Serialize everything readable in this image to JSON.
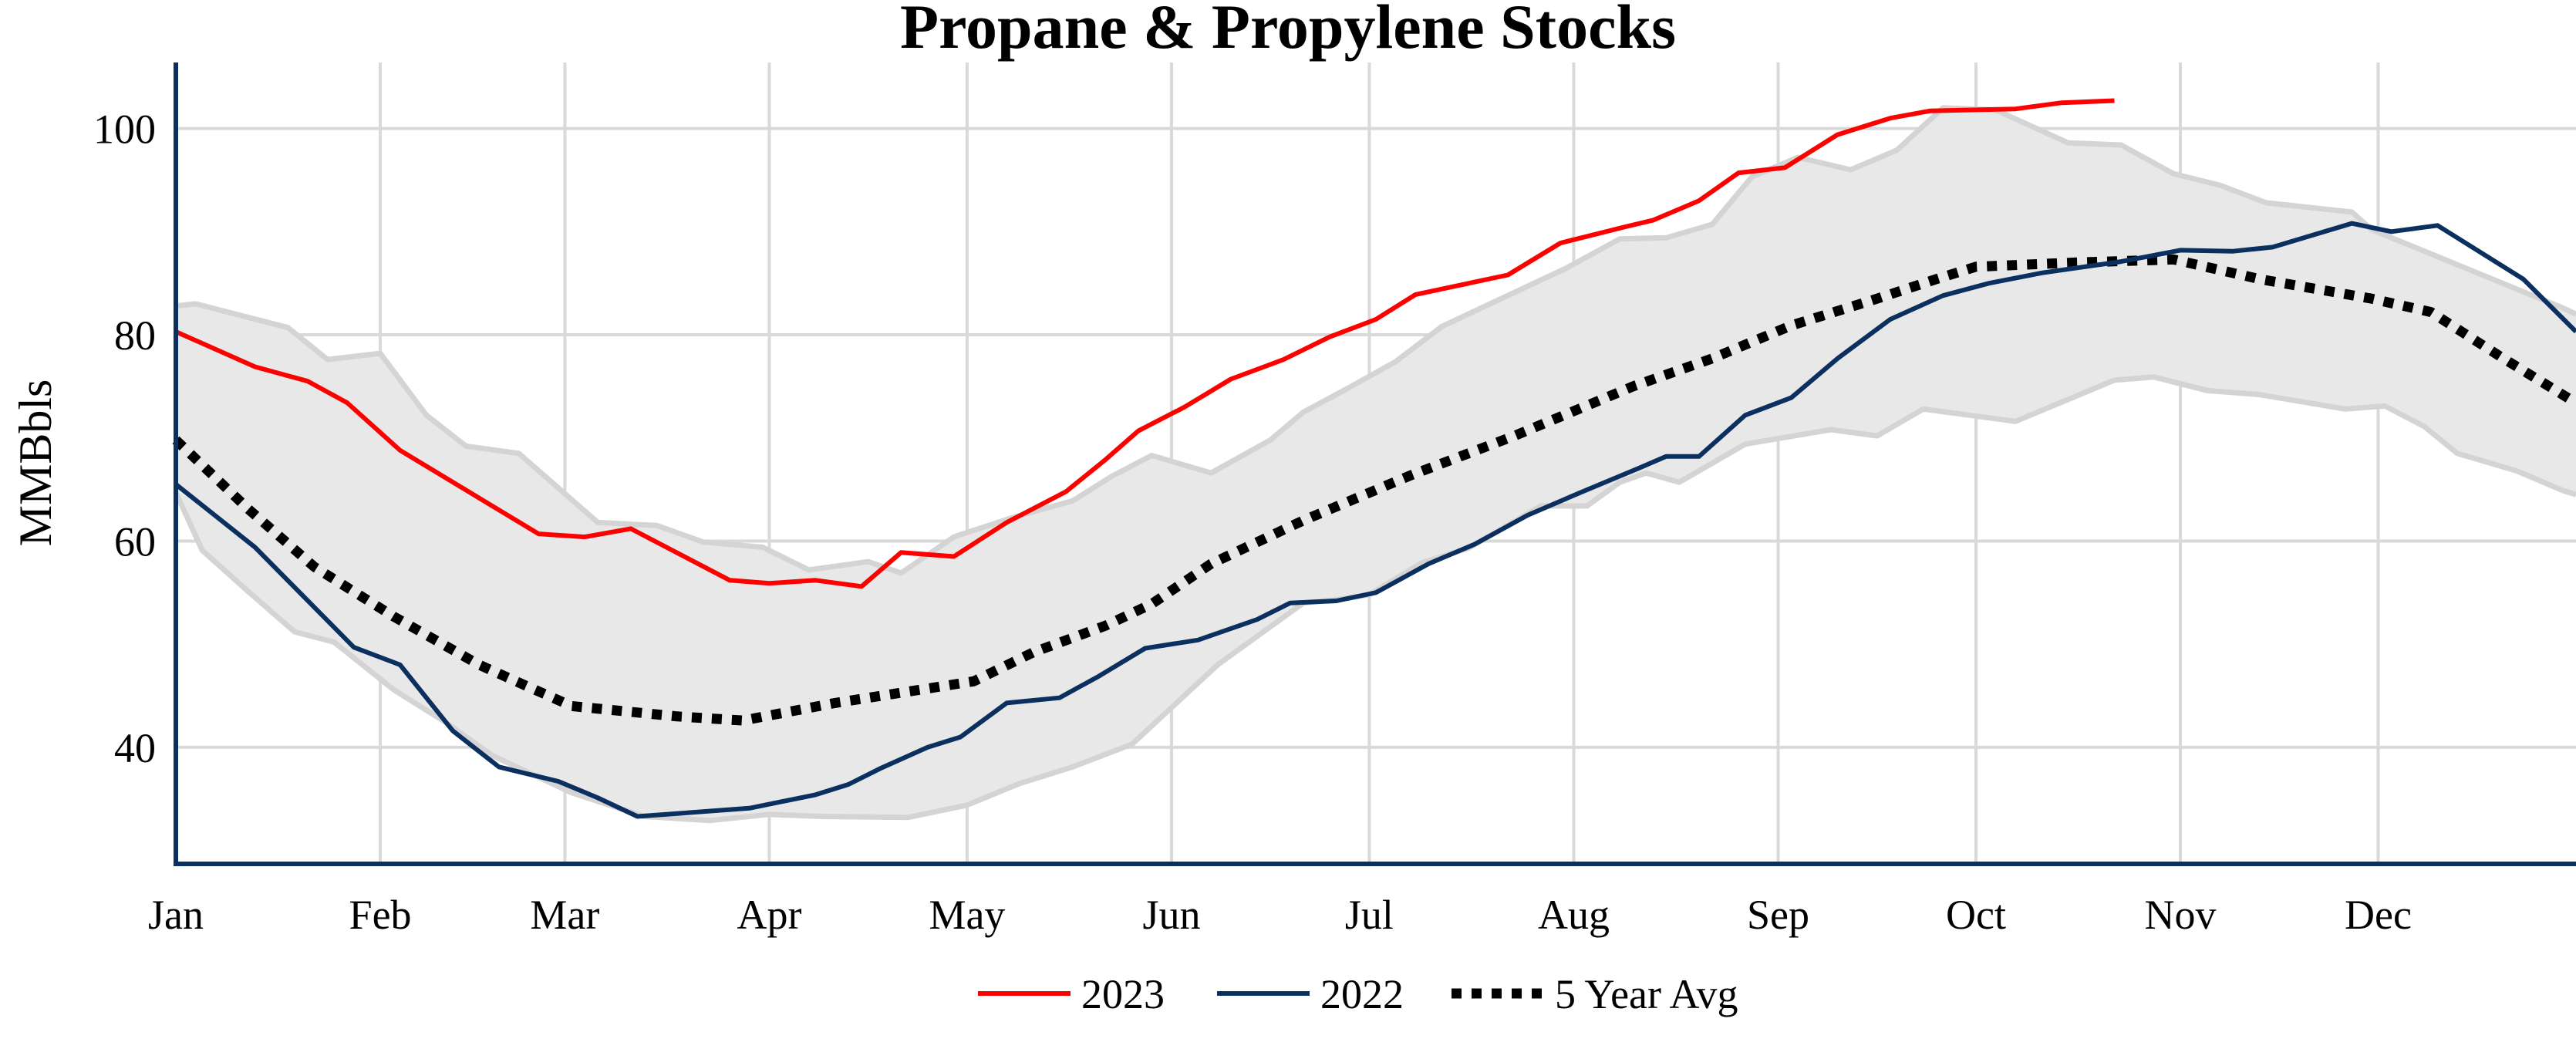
{
  "chart_data": {
    "type": "line",
    "title": "Propane & Propylene Stocks",
    "ylabel": "MMBbls",
    "xlabel": "",
    "x_axis": "date (month-day)",
    "xlim": [
      "01-01",
      "12-31"
    ],
    "ylim": [
      28.7,
      106.4
    ],
    "y_ticks": [
      40,
      60,
      80,
      100
    ],
    "x_ticks": [
      {
        "label": "Jan",
        "date": "01-01"
      },
      {
        "label": "Feb",
        "date": "02-01"
      },
      {
        "label": "Mar",
        "date": "03-01"
      },
      {
        "label": "Apr",
        "date": "04-01"
      },
      {
        "label": "May",
        "date": "05-01"
      },
      {
        "label": "Jun",
        "date": "06-01"
      },
      {
        "label": "Jul",
        "date": "07-01"
      },
      {
        "label": "Aug",
        "date": "08-01"
      },
      {
        "label": "Sep",
        "date": "09-01"
      },
      {
        "label": "Oct",
        "date": "10-01"
      },
      {
        "label": "Nov",
        "date": "11-01"
      },
      {
        "label": "Dec",
        "date": "12-01"
      }
    ],
    "grid": true,
    "legend_position": "bottom",
    "colors": {
      "2023": "#ff0000",
      "2022": "#0b2f5e",
      "avg": "#000000",
      "band_fill": "#e8e8e8",
      "band_edge": "#d4d4d4",
      "grid": "#d9d9d9",
      "axis": "#0b2f5e"
    },
    "band": {
      "upper": [
        [
          "01-01",
          82.8
        ],
        [
          "01-04",
          83.0
        ],
        [
          "01-18",
          80.7
        ],
        [
          "01-24",
          77.6
        ],
        [
          "02-01",
          78.2
        ],
        [
          "02-08",
          72.2
        ],
        [
          "02-14",
          69.2
        ],
        [
          "02-22",
          68.5
        ],
        [
          "03-06",
          61.8
        ],
        [
          "03-15",
          61.5
        ],
        [
          "03-22",
          59.9
        ],
        [
          "03-31",
          59.4
        ],
        [
          "04-07",
          57.2
        ],
        [
          "04-16",
          58.0
        ],
        [
          "04-21",
          56.9
        ],
        [
          "04-29",
          60.4
        ],
        [
          "05-08",
          62.3
        ],
        [
          "05-17",
          63.9
        ],
        [
          "05-23",
          66.3
        ],
        [
          "05-29",
          68.3
        ],
        [
          "06-07",
          66.6
        ],
        [
          "06-16",
          69.8
        ],
        [
          "06-21",
          72.5
        ],
        [
          "06-28",
          74.9
        ],
        [
          "07-05",
          77.4
        ],
        [
          "07-12",
          80.8
        ],
        [
          "07-31",
          86.5
        ],
        [
          "08-08",
          89.3
        ],
        [
          "08-15",
          89.4
        ],
        [
          "08-22",
          90.7
        ],
        [
          "08-28",
          95.3
        ],
        [
          "09-04",
          97.2
        ],
        [
          "09-12",
          96.0
        ],
        [
          "09-19",
          97.9
        ],
        [
          "09-26",
          102.0
        ],
        [
          "10-04",
          101.8
        ],
        [
          "10-15",
          98.6
        ],
        [
          "10-23",
          98.4
        ],
        [
          "10-31",
          95.6
        ],
        [
          "11-07",
          94.5
        ],
        [
          "11-14",
          92.8
        ],
        [
          "11-27",
          91.9
        ],
        [
          "11-30",
          90.2
        ],
        [
          "12-29",
          82.6
        ],
        [
          "12-31",
          82.0
        ]
      ],
      "lower": [
        [
          "01-01",
          64.7
        ],
        [
          "01-05",
          59.1
        ],
        [
          "01-12",
          55.1
        ],
        [
          "01-19",
          51.2
        ],
        [
          "01-25",
          50.2
        ],
        [
          "02-03",
          45.6
        ],
        [
          "02-11",
          42.4
        ],
        [
          "02-18",
          39.2
        ],
        [
          "03-02",
          35.6
        ],
        [
          "03-13",
          33.3
        ],
        [
          "03-23",
          32.9
        ],
        [
          "04-01",
          33.5
        ],
        [
          "04-09",
          33.3
        ],
        [
          "04-22",
          33.2
        ],
        [
          "05-01",
          34.4
        ],
        [
          "05-09",
          36.5
        ],
        [
          "05-17",
          38.1
        ],
        [
          "05-26",
          40.3
        ],
        [
          "06-08",
          48.0
        ],
        [
          "06-21",
          54.0
        ],
        [
          "06-26",
          54.3
        ],
        [
          "07-01",
          54.8
        ],
        [
          "07-09",
          57.9
        ],
        [
          "07-16",
          59.3
        ],
        [
          "07-23",
          61.9
        ],
        [
          "07-27",
          63.4
        ],
        [
          "08-03",
          63.4
        ],
        [
          "08-08",
          65.7
        ],
        [
          "08-12",
          66.6
        ],
        [
          "08-17",
          65.7
        ],
        [
          "08-27",
          69.4
        ],
        [
          "09-09",
          70.8
        ],
        [
          "09-16",
          70.2
        ],
        [
          "09-23",
          72.8
        ],
        [
          "10-07",
          71.6
        ],
        [
          "10-22",
          75.6
        ],
        [
          "10-28",
          75.9
        ],
        [
          "11-05",
          74.6
        ],
        [
          "11-13",
          74.2
        ],
        [
          "11-26",
          72.8
        ],
        [
          "12-02",
          73.1
        ],
        [
          "12-08",
          71.1
        ],
        [
          "12-13",
          68.5
        ],
        [
          "12-22",
          66.8
        ],
        [
          "12-29",
          64.9
        ],
        [
          "12-31",
          64.5
        ]
      ]
    },
    "series": [
      {
        "name": "5 Year Avg",
        "key": "avg",
        "dash": true,
        "points": [
          [
            "01-01",
            69.8
          ],
          [
            "01-12",
            63.1
          ],
          [
            "01-22",
            57.5
          ],
          [
            "02-03",
            52.7
          ],
          [
            "02-16",
            48.0
          ],
          [
            "03-02",
            44.0
          ],
          [
            "03-10",
            43.5
          ],
          [
            "03-18",
            43.0
          ],
          [
            "03-28",
            42.6
          ],
          [
            "04-11",
            44.3
          ],
          [
            "04-24",
            45.6
          ],
          [
            "05-02",
            46.4
          ],
          [
            "05-11",
            49.2
          ],
          [
            "05-22",
            51.8
          ],
          [
            "05-29",
            53.9
          ],
          [
            "06-07",
            57.8
          ],
          [
            "06-21",
            62.0
          ],
          [
            "07-07",
            66.3
          ],
          [
            "07-23",
            70.2
          ],
          [
            "08-10",
            75.0
          ],
          [
            "08-22",
            77.7
          ],
          [
            "09-03",
            80.9
          ],
          [
            "09-16",
            83.5
          ],
          [
            "09-25",
            85.4
          ],
          [
            "10-01",
            86.6
          ],
          [
            "10-16",
            87.0
          ],
          [
            "10-31",
            87.3
          ],
          [
            "11-13",
            85.4
          ],
          [
            "11-30",
            83.5
          ],
          [
            "12-09",
            82.2
          ],
          [
            "12-20",
            77.7
          ],
          [
            "12-31",
            73.4
          ]
        ]
      },
      {
        "name": "2022",
        "key": "2022",
        "dash": false,
        "points": [
          [
            "01-01",
            65.5
          ],
          [
            "01-13",
            59.4
          ],
          [
            "01-28",
            49.7
          ],
          [
            "02-04",
            48.0
          ],
          [
            "02-12",
            41.6
          ],
          [
            "02-19",
            38.1
          ],
          [
            "02-28",
            36.7
          ],
          [
            "03-06",
            35.1
          ],
          [
            "03-12",
            33.3
          ],
          [
            "03-29",
            34.1
          ],
          [
            "04-08",
            35.4
          ],
          [
            "04-13",
            36.4
          ],
          [
            "04-18",
            38.0
          ],
          [
            "04-25",
            40.0
          ],
          [
            "04-30",
            41.0
          ],
          [
            "05-07",
            44.3
          ],
          [
            "05-15",
            44.8
          ],
          [
            "05-21",
            46.9
          ],
          [
            "05-28",
            49.6
          ],
          [
            "06-05",
            50.4
          ],
          [
            "06-14",
            52.4
          ],
          [
            "06-19",
            54.0
          ],
          [
            "06-26",
            54.2
          ],
          [
            "07-02",
            55.0
          ],
          [
            "07-10",
            57.8
          ],
          [
            "07-17",
            59.7
          ],
          [
            "07-25",
            62.5
          ],
          [
            "08-02",
            64.7
          ],
          [
            "08-11",
            67.1
          ],
          [
            "08-15",
            68.2
          ],
          [
            "08-20",
            68.2
          ],
          [
            "08-27",
            72.2
          ],
          [
            "09-03",
            73.9
          ],
          [
            "09-10",
            77.7
          ],
          [
            "09-18",
            81.5
          ],
          [
            "09-26",
            83.8
          ],
          [
            "10-03",
            85.0
          ],
          [
            "10-11",
            86.0
          ],
          [
            "10-23",
            87.1
          ],
          [
            "11-01",
            88.2
          ],
          [
            "11-09",
            88.1
          ],
          [
            "11-15",
            88.5
          ],
          [
            "11-27",
            90.8
          ],
          [
            "12-03",
            90.0
          ],
          [
            "12-10",
            90.6
          ],
          [
            "12-23",
            85.4
          ],
          [
            "12-31",
            80.3
          ]
        ]
      },
      {
        "name": "2023",
        "key": "2023",
        "dash": false,
        "points": [
          [
            "01-01",
            80.3
          ],
          [
            "01-13",
            76.9
          ],
          [
            "01-21",
            75.5
          ],
          [
            "01-27",
            73.4
          ],
          [
            "02-04",
            68.8
          ],
          [
            "02-25",
            60.7
          ],
          [
            "03-04",
            60.4
          ],
          [
            "03-11",
            61.2
          ],
          [
            "03-26",
            56.2
          ],
          [
            "04-01",
            55.9
          ],
          [
            "04-08",
            56.2
          ],
          [
            "04-15",
            55.6
          ],
          [
            "04-21",
            58.9
          ],
          [
            "04-29",
            58.5
          ],
          [
            "05-07",
            61.8
          ],
          [
            "05-16",
            64.8
          ],
          [
            "05-22",
            67.9
          ],
          [
            "05-27",
            70.7
          ],
          [
            "06-03",
            73.0
          ],
          [
            "06-10",
            75.7
          ],
          [
            "06-18",
            77.6
          ],
          [
            "06-25",
            79.8
          ],
          [
            "07-02",
            81.5
          ],
          [
            "07-08",
            83.9
          ],
          [
            "07-22",
            85.8
          ],
          [
            "07-30",
            88.9
          ],
          [
            "08-09",
            90.5
          ],
          [
            "08-13",
            91.1
          ],
          [
            "08-20",
            93.0
          ],
          [
            "08-26",
            95.7
          ],
          [
            "09-02",
            96.2
          ],
          [
            "09-10",
            99.4
          ],
          [
            "09-18",
            101.0
          ],
          [
            "09-24",
            101.7
          ],
          [
            "10-07",
            101.9
          ],
          [
            "10-14",
            102.5
          ],
          [
            "10-22",
            102.7
          ]
        ]
      }
    ],
    "legend": [
      {
        "label": "2023",
        "key": "2023"
      },
      {
        "label": "2022",
        "key": "2022"
      },
      {
        "label": "5 Year Avg",
        "key": "avg"
      }
    ]
  }
}
